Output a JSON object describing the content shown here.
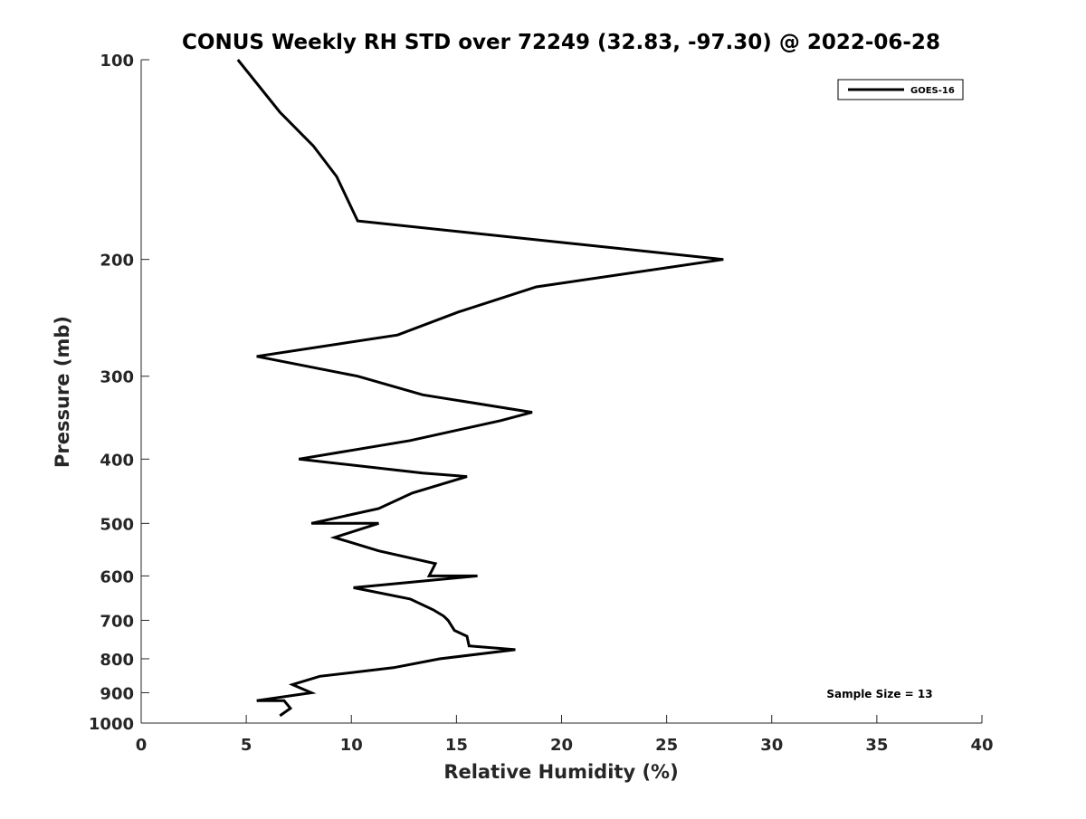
{
  "chart_data": {
    "type": "line",
    "title": "CONUS Weekly RH STD over 72249 (32.83, -97.30) @ 2022-06-28",
    "xlabel": "Relative Humidity (%)",
    "ylabel": "Pressure (mb)",
    "xlim": [
      0,
      40
    ],
    "ylim": [
      100,
      1000
    ],
    "yscale": "log",
    "y_reversed": true,
    "grid": false,
    "legend_position": "top-right",
    "xticks": [
      "0",
      "5",
      "10",
      "15",
      "20",
      "25",
      "30",
      "35",
      "40"
    ],
    "yticks": [
      "100",
      "200",
      "300",
      "400",
      "500",
      "600",
      "700",
      "800",
      "900",
      "1000"
    ],
    "annotation": "Sample Size = 13",
    "line_color": "#000000",
    "series": [
      {
        "name": "GOES-16",
        "x": [
          6.6,
          7.1,
          6.8,
          5.5,
          8.1,
          7.2,
          8.5,
          12.0,
          14.2,
          17.8,
          15.6,
          15.5,
          14.9,
          14.6,
          14.4,
          13.9,
          12.8,
          10.1,
          16.0,
          13.7,
          14.0,
          11.3,
          9.2,
          11.3,
          8.1,
          11.3,
          12.9,
          15.5,
          13.4,
          7.5,
          12.8,
          17.1,
          18.6,
          13.4,
          10.3,
          5.5,
          12.2,
          15.1,
          18.8,
          27.7,
          10.3,
          9.3,
          8.2,
          6.6,
          4.6
        ],
        "y": [
          975,
          950,
          925,
          925,
          900,
          875,
          850,
          825,
          800,
          775,
          765,
          740,
          725,
          700,
          690,
          675,
          650,
          625,
          600,
          600,
          575,
          550,
          525,
          500,
          500,
          475,
          450,
          425,
          420,
          400,
          375,
          350,
          340,
          320,
          300,
          280,
          260,
          240,
          220,
          200,
          175,
          150,
          135,
          120,
          100
        ]
      }
    ]
  }
}
